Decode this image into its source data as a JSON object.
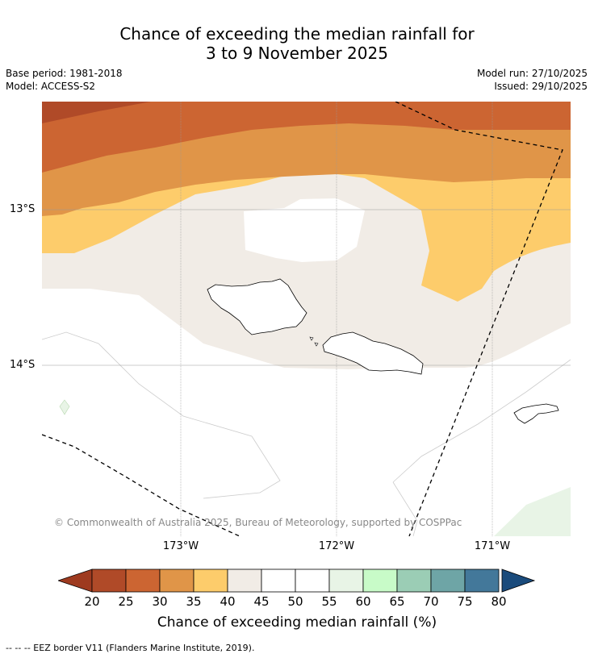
{
  "title": {
    "line1": "Chance of exceeding the median rainfall for",
    "line2": "3 to 9 November 2025"
  },
  "meta": {
    "base_period": "Base period: 1981-2018",
    "model": "Model: ACCESS-S2",
    "model_run": "Model run: 27/10/2025",
    "issued": "Issued: 29/10/2025"
  },
  "map": {
    "latitude_labels": [
      "13°S",
      "14°S"
    ],
    "longitude_labels": [
      "173°W",
      "172°W",
      "171°W"
    ],
    "copyright": "© Commonwealth of Australia 2025, Bureau of Meteorology, supported by COSPPac"
  },
  "colorbar": {
    "title": "Chance of exceeding median rainfall (%)",
    "ticks": [
      "20",
      "25",
      "30",
      "35",
      "40",
      "45",
      "50",
      "55",
      "60",
      "65",
      "70",
      "75",
      "80"
    ],
    "under_color": "#9e3a1f",
    "over_color": "#1a4b7c",
    "bin_colors": [
      "#b04a28",
      "#cc6532",
      "#e09548",
      "#fdcc6b",
      "#f1ece6",
      "#ffffff",
      "#ffffff",
      "#e8f4e6",
      "#c8fbc8",
      "#9bcdb5",
      "#6ea5a6",
      "#43789a"
    ]
  },
  "footer": "--  --  -- EEZ border V11 (Flanders Marine Institute, 2019)."
}
